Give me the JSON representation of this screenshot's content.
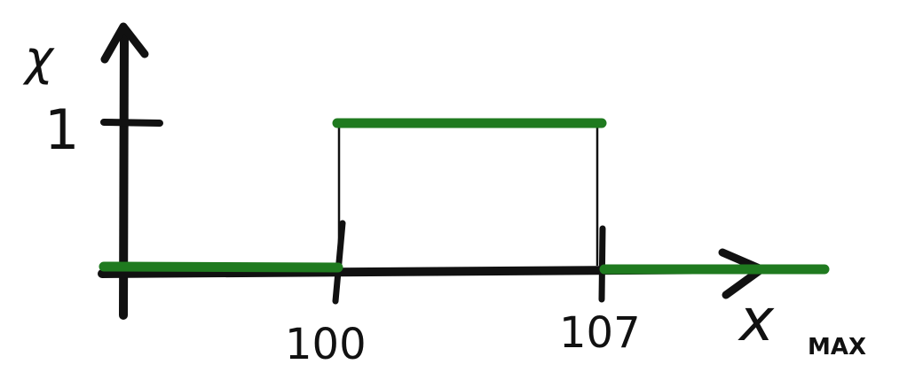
{
  "diagram": {
    "y_axis_label": "χ",
    "y_tick_label": "1",
    "x_axis_label": "x",
    "x_axis_subscript": "MAX",
    "tick_labels": [
      "100",
      "107"
    ],
    "colors": {
      "axis": "#111111",
      "function": "#1f7a1f",
      "background": "#ffffff"
    }
  },
  "chart_data": {
    "type": "line",
    "title": "",
    "xlabel": "x MAX",
    "ylabel": "χ",
    "x_ticks": [
      100,
      107
    ],
    "y_ticks": [
      1
    ],
    "series": [
      {
        "values": [
          {
            "x_from": null,
            "x_to": 100,
            "y": 0
          },
          {
            "x_from": 100,
            "x_to": 107,
            "y": 1
          },
          {
            "x_from": 107,
            "x_to": null,
            "y": 0
          }
        ]
      }
    ]
  }
}
